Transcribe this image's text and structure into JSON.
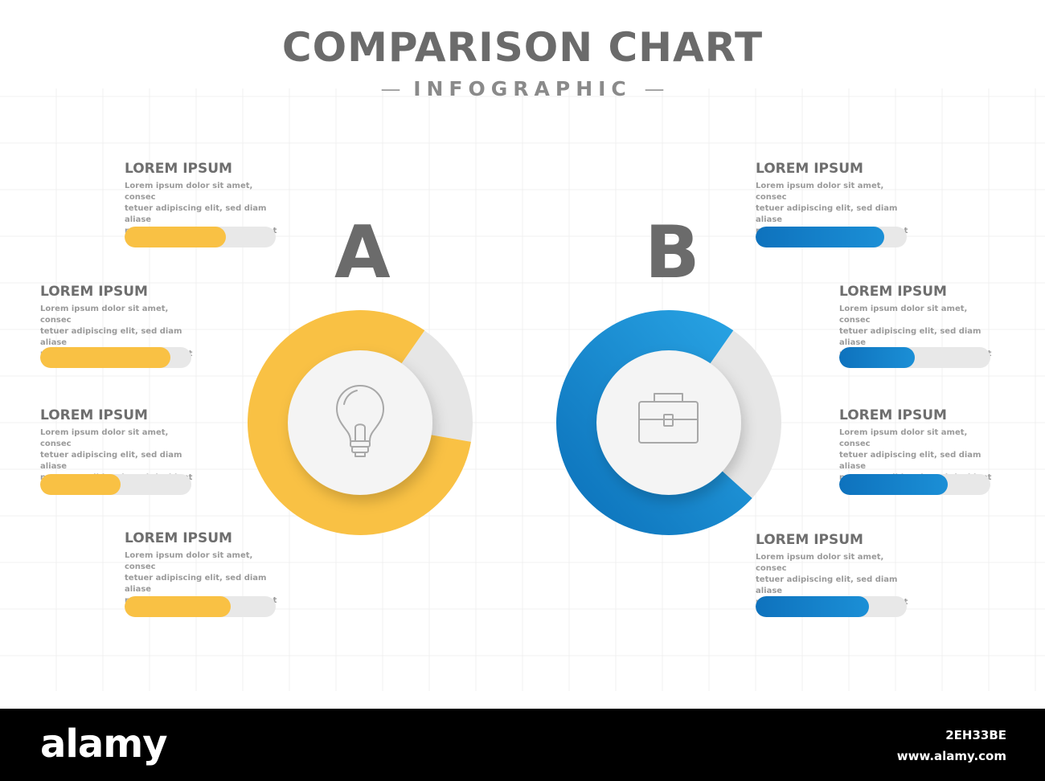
{
  "header": {
    "title": "COMPARISON CHART",
    "subtitle": "INFOGRAPHIC"
  },
  "colors": {
    "a_accent": "#f9c144",
    "b_accent": "#1583c9",
    "track": "#e8e8e8",
    "text_dark": "#6b6b6b",
    "text_light": "#9a9a9a"
  },
  "chart_data": [
    {
      "type": "pie",
      "label": "A",
      "icon": "lightbulb-icon",
      "color": "#f9c144",
      "ring_value": 0.82,
      "bars": [
        {
          "title": "LOREM IPSUM",
          "desc": "Lorem ipsum dolor sit amet, consec\ntetuer adipiscing elit, sed diam aliase\nnonummy nibh euismod tincidunt",
          "value": 0.67
        },
        {
          "title": "LOREM IPSUM",
          "desc": "Lorem ipsum dolor sit amet, consec\ntetuer adipiscing elit, sed diam aliase\nnonummy nibh euismod tincidunt",
          "value": 0.86
        },
        {
          "title": "LOREM IPSUM",
          "desc": "Lorem ipsum dolor sit amet, consec\ntetuer adipiscing elit, sed diam aliase\nnonummy nibh euismod tincidunt",
          "value": 0.53
        },
        {
          "title": "LOREM IPSUM",
          "desc": "Lorem ipsum dolor sit amet, consec\ntetuer adipiscing elit, sed diam aliase\nnonummy nibh euismod tincidunt",
          "value": 0.7
        }
      ]
    },
    {
      "type": "pie",
      "label": "B",
      "icon": "briefcase-icon",
      "color": "#1583c9",
      "ring_value": 0.73,
      "bars": [
        {
          "title": "LOREM IPSUM",
          "desc": "Lorem ipsum dolor sit amet, consec\ntetuer adipiscing elit, sed diam aliase\nnonummy nibh euismod tincidunt",
          "value": 0.85
        },
        {
          "title": "LOREM IPSUM",
          "desc": "Lorem ipsum dolor sit amet, consec\ntetuer adipiscing elit, sed diam aliase\nnonummy nibh euismod tincidunt",
          "value": 0.5
        },
        {
          "title": "LOREM IPSUM",
          "desc": "Lorem ipsum dolor sit amet, consec\ntetuer adipiscing elit, sed diam aliase\nnonummy nibh euismod tincidunt",
          "value": 0.72
        },
        {
          "title": "LOREM IPSUM",
          "desc": "Lorem ipsum dolor sit amet, consec\ntetuer adipiscing elit, sed diam aliase\nnonummy nibh euismod tincidunt",
          "value": 0.75
        }
      ]
    }
  ],
  "footer": {
    "brand": "alamy",
    "image_code": "2EH33BE",
    "url": "www.alamy.com"
  }
}
